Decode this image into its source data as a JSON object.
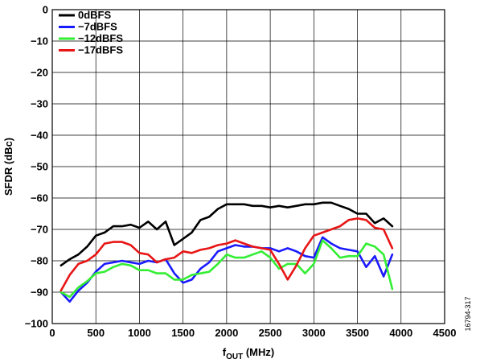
{
  "chart_data": {
    "type": "line",
    "xlabel": "f",
    "xlabel_sub": "OUT",
    "xlabel_unit": " (MHz)",
    "ylabel": "SFDR (dBc)",
    "xlim": [
      0,
      4500
    ],
    "ylim": [
      -100,
      0
    ],
    "xticks": [
      0,
      500,
      1000,
      1500,
      2000,
      2500,
      3000,
      3500,
      4000,
      4500
    ],
    "yticks": [
      0,
      -10,
      -20,
      -30,
      -40,
      -50,
      -60,
      -70,
      -80,
      -90,
      -100
    ],
    "xtick_labels": [
      "0",
      "500",
      "1000",
      "1500",
      "2000",
      "2500",
      "3000",
      "3500",
      "4000",
      "4500"
    ],
    "ytick_labels": [
      "0",
      "−10",
      "−20",
      "−30",
      "−40",
      "−50",
      "−60",
      "−70",
      "−80",
      "−90",
      "−100"
    ],
    "grid": true,
    "legend_position": "top-left",
    "figure_id": "16794-317",
    "series": [
      {
        "name": "0dBFS",
        "color": "#000000",
        "x": [
          100,
          200,
          300,
          400,
          500,
          600,
          700,
          800,
          900,
          1000,
          1100,
          1200,
          1300,
          1400,
          1500,
          1600,
          1700,
          1800,
          1900,
          2000,
          2100,
          2200,
          2300,
          2400,
          2500,
          2600,
          2700,
          2800,
          2900,
          3000,
          3100,
          3200,
          3300,
          3400,
          3500,
          3600,
          3700,
          3800,
          3900
        ],
        "values": [
          -81.5,
          -79.5,
          -78,
          -75.5,
          -72,
          -71,
          -69,
          -69,
          -68.5,
          -69.5,
          -67.5,
          -70,
          -67.5,
          -75,
          -73,
          -71,
          -67,
          -66,
          -63.5,
          -62,
          -62,
          -62,
          -62.5,
          -62.5,
          -63,
          -62.5,
          -63,
          -62.5,
          -62,
          -62,
          -61.5,
          -61.5,
          -62.5,
          -63.5,
          -65,
          -65,
          -68,
          -66.5,
          -69
        ]
      },
      {
        "name": "−7dBFS",
        "color": "#1a1aff",
        "x": [
          100,
          200,
          300,
          400,
          500,
          600,
          700,
          800,
          900,
          1000,
          1100,
          1200,
          1300,
          1400,
          1500,
          1600,
          1700,
          1800,
          1900,
          2000,
          2100,
          2200,
          2300,
          2400,
          2500,
          2600,
          2700,
          2800,
          2900,
          3000,
          3100,
          3200,
          3300,
          3400,
          3500,
          3600,
          3700,
          3800,
          3900
        ],
        "values": [
          -90,
          -93,
          -89.5,
          -87,
          -83.5,
          -81,
          -80.5,
          -80,
          -80.5,
          -81,
          -80,
          -80.5,
          -79.5,
          -84,
          -87,
          -86,
          -82.5,
          -80.5,
          -77,
          -76,
          -75,
          -75.5,
          -75.5,
          -76,
          -76,
          -77,
          -76,
          -77,
          -78.5,
          -79,
          -72.5,
          -74.5,
          -76,
          -76.5,
          -77,
          -82,
          -78.5,
          -85,
          -78
        ]
      },
      {
        "name": "−12dBFS",
        "color": "#33ee33",
        "x": [
          100,
          200,
          300,
          400,
          500,
          600,
          700,
          800,
          900,
          1000,
          1100,
          1200,
          1300,
          1400,
          1500,
          1600,
          1700,
          1800,
          1900,
          2000,
          2100,
          2200,
          2300,
          2400,
          2500,
          2600,
          2700,
          2800,
          2900,
          3000,
          3100,
          3200,
          3300,
          3400,
          3500,
          3600,
          3700,
          3800,
          3900
        ],
        "values": [
          -90,
          -91.5,
          -88.5,
          -86.5,
          -84,
          -83.5,
          -82,
          -81,
          -81.5,
          -83,
          -83,
          -84,
          -84,
          -86,
          -86,
          -84.5,
          -84,
          -83.5,
          -81,
          -78,
          -79,
          -79,
          -78,
          -77,
          -79,
          -82.5,
          -81,
          -81,
          -84,
          -81,
          -73.5,
          -76,
          -79,
          -78.5,
          -78.5,
          -74.5,
          -75.5,
          -78,
          -89
        ]
      },
      {
        "name": "−17dBFS",
        "color": "#e81515",
        "x": [
          100,
          200,
          300,
          400,
          500,
          600,
          700,
          800,
          900,
          1000,
          1100,
          1200,
          1300,
          1400,
          1500,
          1600,
          1700,
          1800,
          1900,
          2000,
          2100,
          2200,
          2300,
          2400,
          2500,
          2600,
          2700,
          2800,
          2900,
          3000,
          3100,
          3200,
          3300,
          3400,
          3500,
          3600,
          3700,
          3800,
          3900
        ],
        "values": [
          -89.5,
          -84.5,
          -81,
          -80,
          -78,
          -74.5,
          -74,
          -74,
          -75,
          -77.5,
          -78,
          -80.5,
          -79.5,
          -79,
          -77,
          -77.5,
          -76.5,
          -76,
          -75,
          -74.5,
          -73.5,
          -74.5,
          -75.5,
          -76,
          -76.5,
          -81,
          -86,
          -81.5,
          -76,
          -72,
          -71,
          -70,
          -69,
          -67,
          -66.5,
          -67,
          -69.5,
          -70,
          -76
        ]
      }
    ]
  }
}
